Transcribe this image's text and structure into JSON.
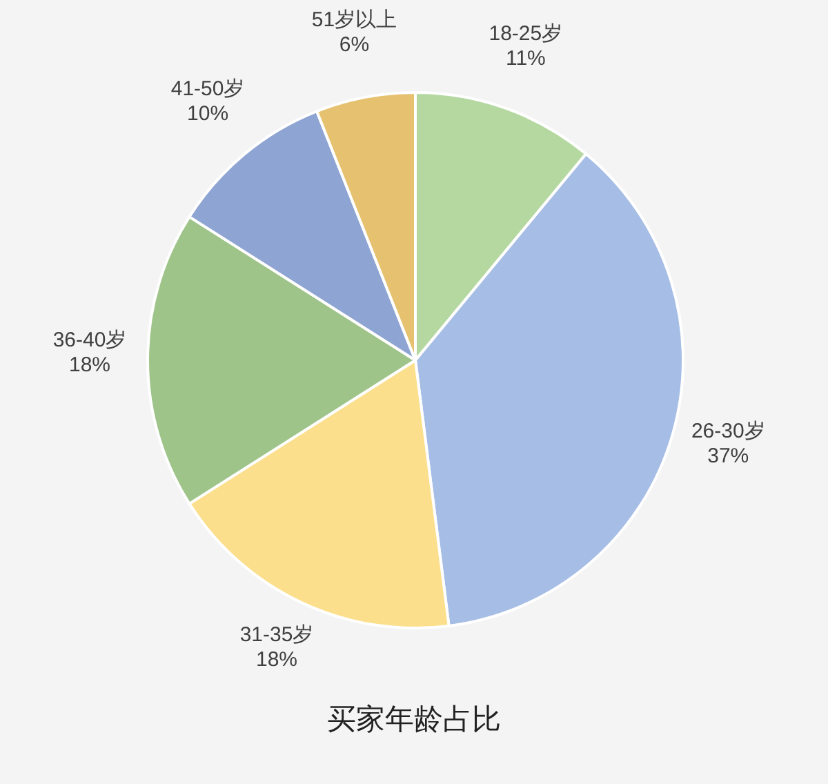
{
  "chart_data": {
    "type": "pie",
    "title": "买家年龄占比",
    "categories": [
      "18-25岁",
      "26-30岁",
      "31-35岁",
      "36-40岁",
      "41-50岁",
      "51岁以上"
    ],
    "values": [
      11,
      37,
      18,
      18,
      10,
      6
    ],
    "value_labels": [
      "11%",
      "37%",
      "18%",
      "18%",
      "10%",
      "6%"
    ],
    "colors": [
      "#b5d8a1",
      "#a6bde5",
      "#fcdf8c",
      "#9fc48a",
      "#8ea4d2",
      "#e6c170"
    ]
  }
}
